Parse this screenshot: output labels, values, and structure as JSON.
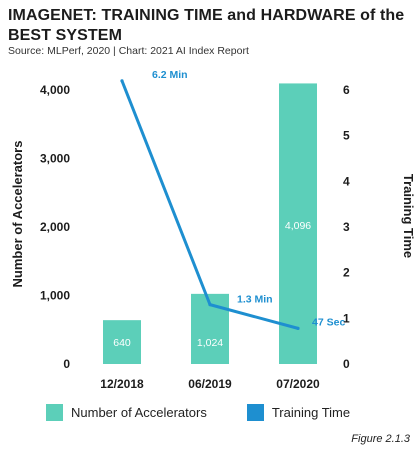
{
  "title": "IMAGENET: TRAINING TIME and HARDWARE of the BEST SYSTEM",
  "subtitle": "Source: MLPerf, 2020 | Chart: 2021 AI Index Report",
  "figure_label": "Figure 2.1.3",
  "colors": {
    "bar": "#5ccfb9",
    "line": "#1e8fd0",
    "bar_label": "#ffffff",
    "axis_text": "#1c1c1c"
  },
  "chart_data": {
    "type": "bar",
    "categories": [
      "12/2018",
      "06/2019",
      "07/2020"
    ],
    "series": [
      {
        "name": "Number of Accelerators",
        "kind": "bar",
        "axis": "left",
        "values": [
          640,
          1024,
          4096
        ],
        "labels": [
          "640",
          "1,024",
          "4,096"
        ]
      },
      {
        "name": "Training Time",
        "kind": "line",
        "axis": "right",
        "values": [
          6.2,
          1.3,
          0.78
        ],
        "labels": [
          "6.2 Min",
          "1.3 Min",
          "47 Sec"
        ]
      }
    ],
    "ylabel": "Number of Accelerators",
    "y2label": "Training Time",
    "ylim": [
      0,
      4000
    ],
    "y2lim": [
      0,
      6
    ],
    "yticks": [
      "0",
      "1,000",
      "2,000",
      "3,000",
      "4,000"
    ],
    "y2ticks": [
      "0",
      "1",
      "2",
      "3",
      "4",
      "5",
      "6"
    ],
    "legend_position": "bottom"
  }
}
